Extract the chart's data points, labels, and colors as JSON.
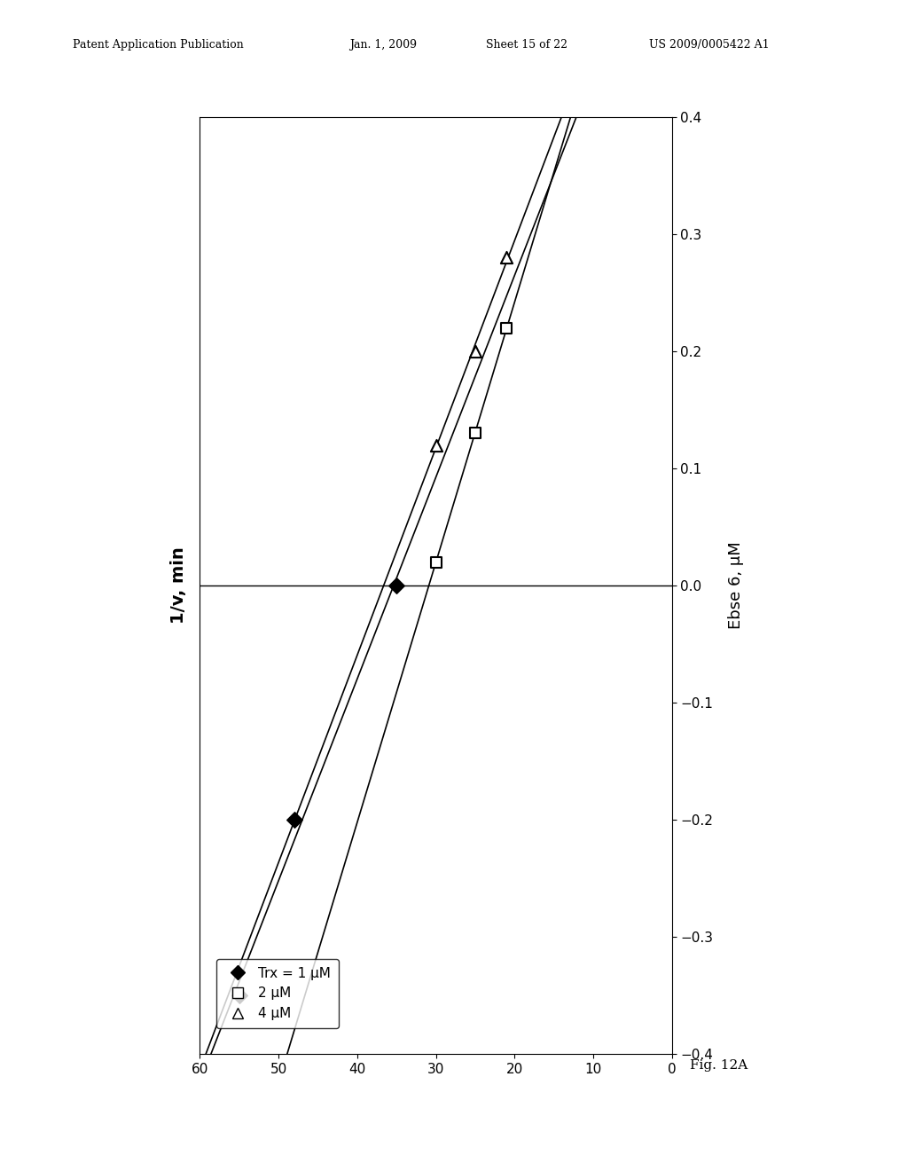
{
  "inv_v_axis_label": "1/v, min",
  "ebse6_axis_label": "Ebse 6, μM",
  "inv_v_ticks": [
    0,
    10,
    20,
    30,
    40,
    50,
    60
  ],
  "ebse6_ticks": [
    -0.4,
    -0.3,
    -0.2,
    -0.1,
    0.0,
    0.1,
    0.2,
    0.3,
    0.4
  ],
  "s1_inv_v": [
    55,
    48,
    35
  ],
  "s1_ebse6": [
    -0.35,
    -0.2,
    0.0
  ],
  "s2_inv_v": [
    30,
    25,
    21
  ],
  "s2_ebse6": [
    0.02,
    0.13,
    0.22
  ],
  "s3_inv_v": [
    30,
    25,
    21
  ],
  "s3_ebse6": [
    0.12,
    0.2,
    0.28
  ],
  "legend_labels": [
    "Trx = 1 μM",
    "2 μM",
    "4 μM"
  ],
  "fig_caption": "Fig. 12A",
  "header_left": "Patent Application Publication",
  "header_mid1": "Jan. 1, 2009",
  "header_mid2": "Sheet 15 of 22",
  "header_right": "US 2009/0005422 A1",
  "bg_color": "#ffffff",
  "inv_v_range": [
    0,
    60
  ],
  "ebse6_range": [
    -0.4,
    0.4
  ]
}
